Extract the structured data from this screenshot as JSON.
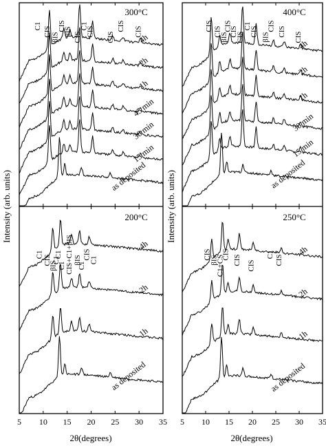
{
  "chart_data": [
    {
      "type": "line",
      "title": "300°C",
      "xlabel": "2θ(degrees)",
      "ylabel": "Intensity (arb. units)",
      "xlim": [
        5,
        35
      ],
      "series": [
        {
          "name": "4h"
        },
        {
          "name": "2h"
        },
        {
          "name": "1h"
        },
        {
          "name": "45 min"
        },
        {
          "name": "30 min"
        },
        {
          "name": "15 min"
        },
        {
          "name": "as deposited"
        }
      ],
      "peak_labels": [
        {
          "label": "C1",
          "x": 9.3
        },
        {
          "label": "CIS",
          "x": 11.3
        },
        {
          "label": "βIS",
          "x": 13.0
        },
        {
          "label": "CIS",
          "x": 14.3
        },
        {
          "label": "βIS",
          "x": 15.6
        },
        {
          "label": "CIS",
          "x": 17.6
        },
        {
          "label": "C1",
          "x": 19.0
        },
        {
          "label": "CIS",
          "x": 20.3
        },
        {
          "label": "CIS",
          "x": 24.5
        },
        {
          "label": "CIS",
          "x": 26.7
        },
        {
          "label": "CIS",
          "x": 30.3
        }
      ]
    },
    {
      "type": "line",
      "title": "400°C",
      "xlabel": "2θ(degrees)",
      "ylabel": "Intensity (arb. units)",
      "xlim": [
        5,
        35
      ],
      "series": [
        {
          "name": "4h"
        },
        {
          "name": "2h"
        },
        {
          "name": "1h"
        },
        {
          "name": "30 min"
        },
        {
          "name": "15 min"
        },
        {
          "name": "as deposited"
        }
      ],
      "peak_labels": [
        {
          "label": "CIS",
          "x": 11.2
        },
        {
          "label": "CIS",
          "x": 13.0
        },
        {
          "label": "βIS",
          "x": 14.4
        },
        {
          "label": "CIS",
          "x": 15.2
        },
        {
          "label": "CIS",
          "x": 16.5
        },
        {
          "label": "CIS",
          "x": 17.9
        },
        {
          "label": "C1",
          "x": 19.4
        },
        {
          "label": "CIS",
          "x": 20.8
        },
        {
          "label": "βIS",
          "x": 23.3
        },
        {
          "label": "CIS",
          "x": 24.5
        },
        {
          "label": "CIS",
          "x": 26.8
        },
        {
          "label": "CIS",
          "x": 30.3
        }
      ]
    },
    {
      "type": "line",
      "title": "200°C",
      "xlabel": "2θ(degrees)",
      "ylabel": "Intensity (arb. units)",
      "xlim": [
        5,
        35
      ],
      "xticks": [
        5,
        10,
        15,
        20,
        25,
        30,
        35
      ],
      "series": [
        {
          "name": "4h"
        },
        {
          "name": "2h"
        },
        {
          "name": "1h"
        },
        {
          "name": "as deposited"
        }
      ],
      "peak_labels": [
        {
          "label": "C1",
          "x": 9.7
        },
        {
          "label": "CIS",
          "x": 11.3
        },
        {
          "label": "βIS",
          "x": 12.5
        },
        {
          "label": "C1",
          "x": 13.6
        },
        {
          "label": "C1",
          "x": 13.2
        },
        {
          "label": "C1",
          "x": 14.3
        },
        {
          "label": "CIS+C1+βIS",
          "x": 15.9
        },
        {
          "label": "βIS",
          "x": 17.6
        },
        {
          "label": "C1",
          "x": 18.5
        },
        {
          "label": "CIS",
          "x": 19.6
        },
        {
          "label": "C1",
          "x": 21.0
        }
      ]
    },
    {
      "type": "line",
      "title": "250°C",
      "xlabel": "2θ(degrees)",
      "ylabel": "Intensity (arb. units)",
      "xlim": [
        5,
        35
      ],
      "xticks": [
        5,
        10,
        15,
        20,
        25,
        30,
        35
      ],
      "series": [
        {
          "name": "4h"
        },
        {
          "name": "2h"
        },
        {
          "name": "1h"
        },
        {
          "name": "as deposited"
        }
      ],
      "peak_labels": [
        {
          "label": "CIS",
          "x": 10.8
        },
        {
          "label": "βIS",
          "x": 12.3
        },
        {
          "label": "C1+CS",
          "x": 13.6
        },
        {
          "label": "CIS",
          "x": 14.8
        },
        {
          "label": "CIS",
          "x": 17.2
        },
        {
          "label": "CIS",
          "x": 20.2
        },
        {
          "label": "C1",
          "x": 24.3
        },
        {
          "label": "CIS",
          "x": 26.2
        }
      ]
    }
  ]
}
